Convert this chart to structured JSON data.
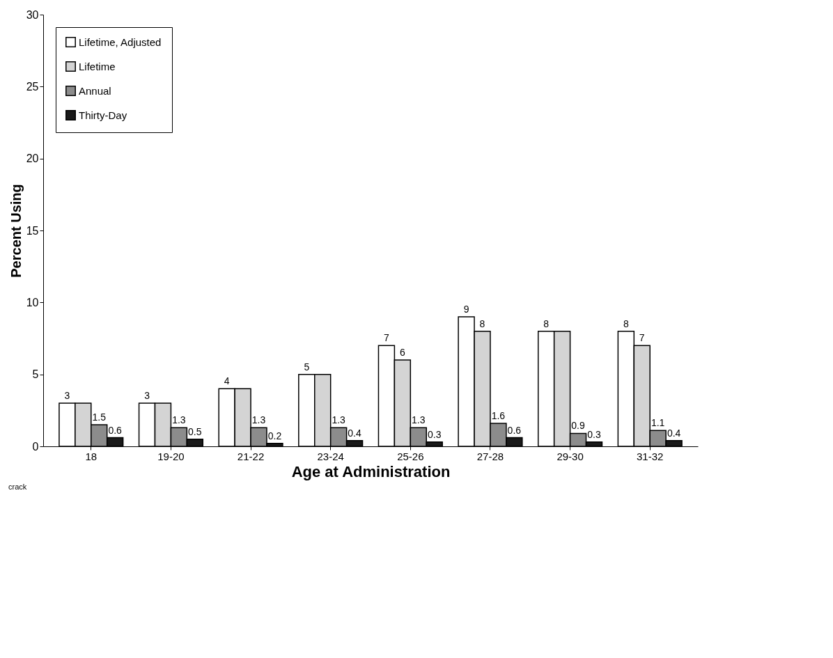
{
  "chart_data": {
    "type": "bar",
    "xlabel": "Age at Administration",
    "ylabel": "Percent Using",
    "categories": [
      "18",
      "19-20",
      "21-22",
      "23-24",
      "25-26",
      "27-28",
      "29-30",
      "31-32"
    ],
    "series": [
      {
        "name": "Lifetime, Adjusted",
        "color": "#ffffff",
        "values": [
          3,
          3,
          4,
          5,
          7,
          9,
          8,
          8
        ],
        "value_labels": [
          "3",
          "3",
          "4",
          "5",
          "7",
          "9",
          "8",
          "8"
        ]
      },
      {
        "name": "Lifetime",
        "color": "#d4d4d4",
        "values": [
          3,
          3,
          4,
          5,
          6,
          8,
          8,
          7
        ],
        "value_labels": [
          null,
          null,
          null,
          null,
          "6",
          "8",
          null,
          "7"
        ]
      },
      {
        "name": "Annual",
        "color": "#8c8c8c",
        "values": [
          1.5,
          1.3,
          1.3,
          1.3,
          1.3,
          1.6,
          0.9,
          1.1
        ],
        "value_labels": [
          "1.5",
          "1.3",
          "1.3",
          "1.3",
          "1.3",
          "1.6",
          "0.9",
          "1.1"
        ]
      },
      {
        "name": "Thirty-Day",
        "color": "#1a1a1a",
        "values": [
          0.6,
          0.5,
          0.2,
          0.4,
          0.3,
          0.6,
          0.3,
          0.4
        ],
        "value_labels": [
          "0.6",
          "0.5",
          "0.2",
          "0.4",
          "0.3",
          "0.6",
          "0.3",
          "0.4"
        ]
      }
    ],
    "ylim": [
      0,
      30
    ],
    "yticks": [
      0,
      5,
      10,
      15,
      20,
      25,
      30
    ],
    "grid": false,
    "legend": "top left",
    "annotations": [
      "crack"
    ]
  }
}
